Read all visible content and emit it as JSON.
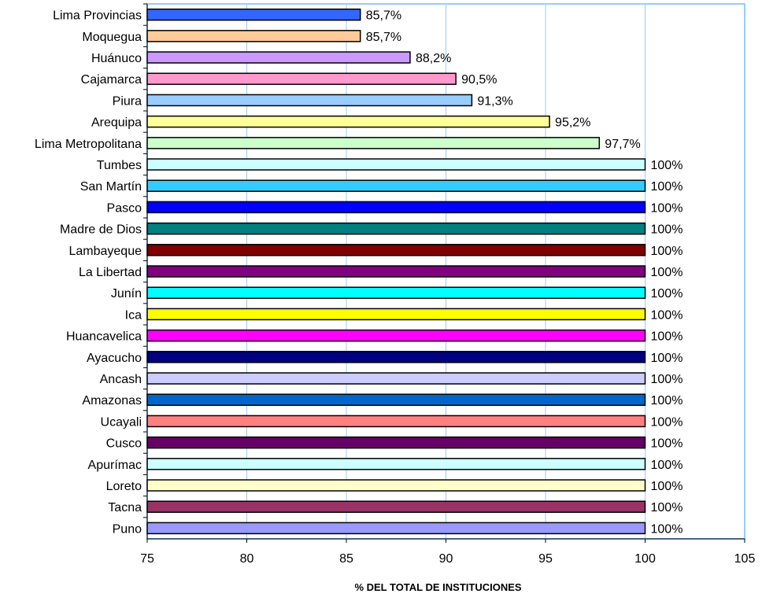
{
  "chart_data": {
    "type": "bar",
    "orientation": "horizontal",
    "title": "",
    "xlabel": "%  DEL TOTAL DE INSTITUCIONES",
    "ylabel": "",
    "xlim": [
      75,
      105
    ],
    "x_ticks": [
      75,
      80,
      85,
      90,
      95,
      100,
      105
    ],
    "grid": "vertical",
    "legend": "none",
    "categories": [
      "Lima Provincias",
      "Moquegua",
      "Huánuco",
      "Cajamarca",
      "Piura",
      "Arequipa",
      "Lima Metropolitana",
      "Tumbes",
      "San Martín",
      "Pasco",
      "Madre de Dios",
      "Lambayeque",
      "La Libertad",
      "Junín",
      "Ica",
      "Huancavelica",
      "Ayacucho",
      "Ancash",
      "Amazonas",
      "Ucayali",
      "Cusco",
      "Apurímac",
      "Loreto",
      "Tacna",
      "Puno"
    ],
    "values": [
      85.7,
      85.7,
      88.2,
      90.5,
      91.3,
      95.2,
      97.7,
      100,
      100,
      100,
      100,
      100,
      100,
      100,
      100,
      100,
      100,
      100,
      100,
      100,
      100,
      100,
      100,
      100,
      100
    ],
    "value_labels": [
      "85,7%",
      "85,7%",
      "88,2%",
      "90,5%",
      "91,3%",
      "95,2%",
      "97,7%",
      "100%",
      "100%",
      "100%",
      "100%",
      "100%",
      "100%",
      "100%",
      "100%",
      "100%",
      "100%",
      "100%",
      "100%",
      "100%",
      "100%",
      "100%",
      "100%",
      "100%",
      "100%"
    ],
    "colors": [
      "#3366FF",
      "#FFCC99",
      "#CC99FF",
      "#FF99CC",
      "#99CCFF",
      "#FFFF99",
      "#CCFFCC",
      "#CCFFFF",
      "#33CCFF",
      "#0000FF",
      "#008080",
      "#800000",
      "#800080",
      "#00FFFF",
      "#FFFF00",
      "#FF00FF",
      "#000080",
      "#CCCCFF",
      "#0066CC",
      "#FF8080",
      "#660066",
      "#CCFFFF",
      "#FFFFCC",
      "#993366",
      "#9999FF"
    ]
  }
}
